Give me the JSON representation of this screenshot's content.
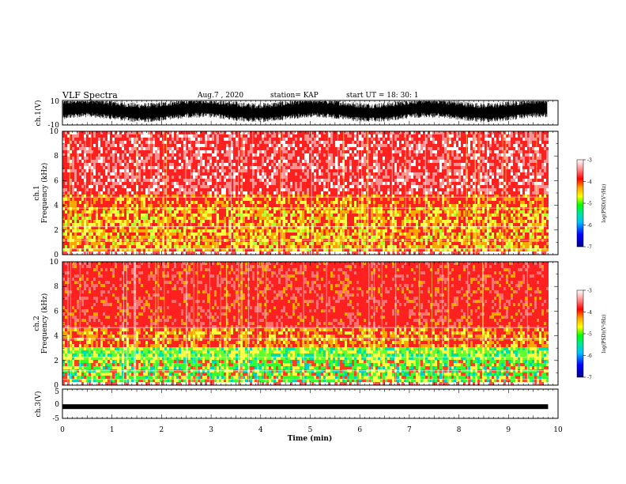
{
  "header": {
    "title": "VLF Spectra",
    "date": "Aug.7 , 2020",
    "station": "station= KAP",
    "start": "start UT = 18: 30: 1"
  },
  "colors": {
    "cmap": [
      "#00008b",
      "#0000ff",
      "#00bfff",
      "#00e5a0",
      "#00ff00",
      "#ffff00",
      "#ffa500",
      "#ff0000",
      "#ff4040",
      "#ffffff"
    ],
    "trace": "#000000"
  },
  "chart_data": [
    {
      "type": "line",
      "ylabel": "ch.1(V)",
      "ylim": [
        -10,
        10
      ],
      "yticks": [
        "10",
        "-10"
      ],
      "xlim": [
        0,
        10
      ],
      "description_series": "noisy broadband waveform"
    },
    {
      "type": "heatmap",
      "ylabel": "ch.1\nFrequency (kHz)",
      "ylim": [
        0,
        10
      ],
      "yticks": [
        "0",
        "2",
        "4",
        "6",
        "8",
        "10"
      ],
      "xlim": [
        0,
        10
      ],
      "colorbar": {
        "label": "log(PSD)(V²/Hz)",
        "range": [
          -7,
          -3
        ],
        "ticks": [
          "-3",
          "-4",
          "-5",
          "-6",
          "-7"
        ]
      }
    },
    {
      "type": "heatmap",
      "ylabel": "ch.2\nFrequency (kHz)",
      "ylim": [
        0,
        10
      ],
      "yticks": [
        "0",
        "2",
        "4",
        "6",
        "8",
        "10"
      ],
      "xlim": [
        0,
        10
      ],
      "colorbar": {
        "label": "log(PSD)(V²/Hz)",
        "range": [
          -7,
          -3
        ],
        "ticks": [
          "-3",
          "-4",
          "-5",
          "-6",
          "-7"
        ]
      }
    },
    {
      "type": "line",
      "ylabel": "ch.3(V)",
      "ylim": [
        -5,
        5
      ],
      "yticks": [
        "5",
        "0",
        "-5"
      ],
      "xlim": [
        0,
        10
      ],
      "xticks": [
        "0",
        "1",
        "2",
        "3",
        "4",
        "5",
        "6",
        "7",
        "8",
        "9",
        "10"
      ],
      "xlabel": "Time (min)",
      "data_extent_x": [
        0,
        9.8
      ],
      "level": -1
    }
  ]
}
